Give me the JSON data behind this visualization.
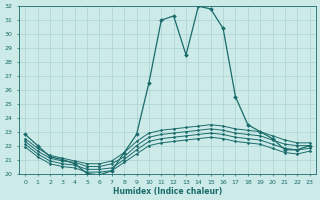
{
  "xlabel": "Humidex (Indice chaleur)",
  "x": [
    0,
    1,
    2,
    3,
    4,
    5,
    6,
    7,
    8,
    9,
    10,
    11,
    12,
    13,
    14,
    15,
    16,
    17,
    18,
    19,
    20,
    21,
    22,
    23
  ],
  "line_max": [
    22.8,
    22.0,
    21.2,
    21.0,
    20.7,
    20.0,
    19.9,
    20.2,
    21.5,
    22.8,
    26.5,
    31.0,
    31.3,
    28.5,
    32.0,
    31.8,
    30.4,
    25.5,
    23.5,
    23.0,
    22.5,
    21.7,
    21.7,
    22.0
  ],
  "line_top": [
    22.5,
    21.8,
    21.3,
    21.1,
    20.9,
    20.7,
    20.7,
    20.9,
    21.5,
    22.3,
    22.9,
    23.1,
    23.2,
    23.3,
    23.4,
    23.5,
    23.4,
    23.2,
    23.1,
    23.0,
    22.7,
    22.4,
    22.2,
    22.2
  ],
  "line_mid": [
    22.3,
    21.6,
    21.1,
    20.9,
    20.8,
    20.5,
    20.5,
    20.7,
    21.2,
    22.0,
    22.6,
    22.8,
    22.9,
    23.0,
    23.1,
    23.2,
    23.1,
    22.9,
    22.8,
    22.7,
    22.4,
    22.1,
    22.0,
    22.0
  ],
  "line_bot": [
    22.1,
    21.4,
    20.9,
    20.7,
    20.6,
    20.3,
    20.3,
    20.4,
    21.0,
    21.7,
    22.3,
    22.5,
    22.6,
    22.7,
    22.8,
    22.9,
    22.8,
    22.6,
    22.5,
    22.4,
    22.1,
    21.8,
    21.7,
    21.8
  ],
  "line_min": [
    21.9,
    21.2,
    20.7,
    20.5,
    20.4,
    20.1,
    20.1,
    20.2,
    20.8,
    21.4,
    22.0,
    22.2,
    22.3,
    22.4,
    22.5,
    22.6,
    22.5,
    22.3,
    22.2,
    22.1,
    21.8,
    21.5,
    21.4,
    21.6
  ],
  "ylim": [
    20,
    32
  ],
  "xlim": [
    -0.5,
    23.5
  ],
  "yticks": [
    20,
    21,
    22,
    23,
    24,
    25,
    26,
    27,
    28,
    29,
    30,
    31,
    32
  ],
  "xticks": [
    0,
    1,
    2,
    3,
    4,
    5,
    6,
    7,
    8,
    9,
    10,
    11,
    12,
    13,
    14,
    15,
    16,
    17,
    18,
    19,
    20,
    21,
    22,
    23
  ],
  "bg_color": "#cceae8",
  "grid_color": "#aad4d0",
  "line_color": "#1a6b6b",
  "tick_fontsize": 4.5,
  "xlabel_fontsize": 5.5
}
